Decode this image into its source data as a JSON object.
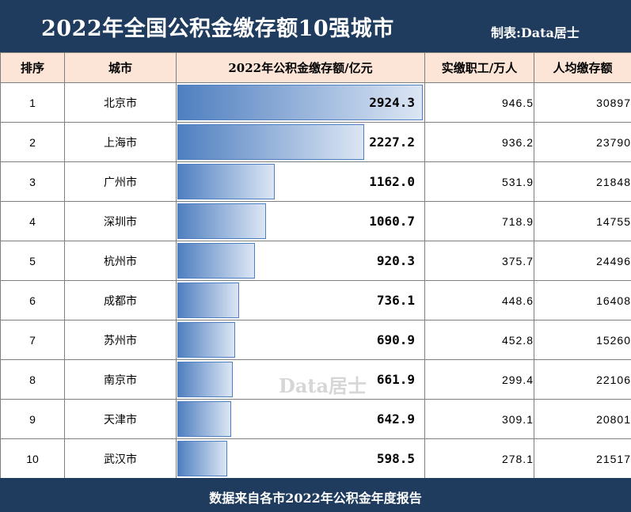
{
  "header": {
    "title": "2022年全国公积金缴存额10强城市",
    "credit": "制表:Data居士"
  },
  "columns": {
    "rank": "排序",
    "city": "城市",
    "amount": "2022年公积金缴存额/亿元",
    "workers": "实缴职工/万人",
    "per_capita": "人均缴存额"
  },
  "rows": [
    {
      "rank": "1",
      "city": "北京市",
      "amount": "2924.3",
      "workers": "946.5",
      "per_capita": "30897"
    },
    {
      "rank": "2",
      "city": "上海市",
      "amount": "2227.2",
      "workers": "936.2",
      "per_capita": "23790"
    },
    {
      "rank": "3",
      "city": "广州市",
      "amount": "1162.0",
      "workers": "531.9",
      "per_capita": "21848"
    },
    {
      "rank": "4",
      "city": "深圳市",
      "amount": "1060.7",
      "workers": "718.9",
      "per_capita": "14755"
    },
    {
      "rank": "5",
      "city": "杭州市",
      "amount": "920.3",
      "workers": "375.7",
      "per_capita": "24496"
    },
    {
      "rank": "6",
      "city": "成都市",
      "amount": "736.1",
      "workers": "448.6",
      "per_capita": "16408"
    },
    {
      "rank": "7",
      "city": "苏州市",
      "amount": "690.9",
      "workers": "452.8",
      "per_capita": "15260"
    },
    {
      "rank": "8",
      "city": "南京市",
      "amount": "661.9",
      "workers": "299.4",
      "per_capita": "22106"
    },
    {
      "rank": "9",
      "city": "天津市",
      "amount": "642.9",
      "workers": "309.1",
      "per_capita": "20801"
    },
    {
      "rank": "10",
      "city": "武汉市",
      "amount": "598.5",
      "workers": "278.1",
      "per_capita": "21517"
    }
  ],
  "chart_data": {
    "type": "bar",
    "title": "2022年全国公积金缴存额10强城市",
    "categories": [
      "北京市",
      "上海市",
      "广州市",
      "深圳市",
      "杭州市",
      "成都市",
      "苏州市",
      "南京市",
      "天津市",
      "武汉市"
    ],
    "values": [
      2924.3,
      2227.2,
      1162.0,
      1060.7,
      920.3,
      736.1,
      690.9,
      661.9,
      642.9,
      598.5
    ],
    "ylabel": "2022年公积金缴存额/亿元",
    "orientation": "horizontal",
    "bar_color": "#4f7fc0"
  },
  "footer": {
    "source": "数据来自各市2022年公积金年度报告"
  },
  "watermark": "Data居士",
  "colors": {
    "header_bg": "#1f3c5e",
    "column_header_bg": "#fce4d6",
    "bar": "#4f7fc0"
  }
}
